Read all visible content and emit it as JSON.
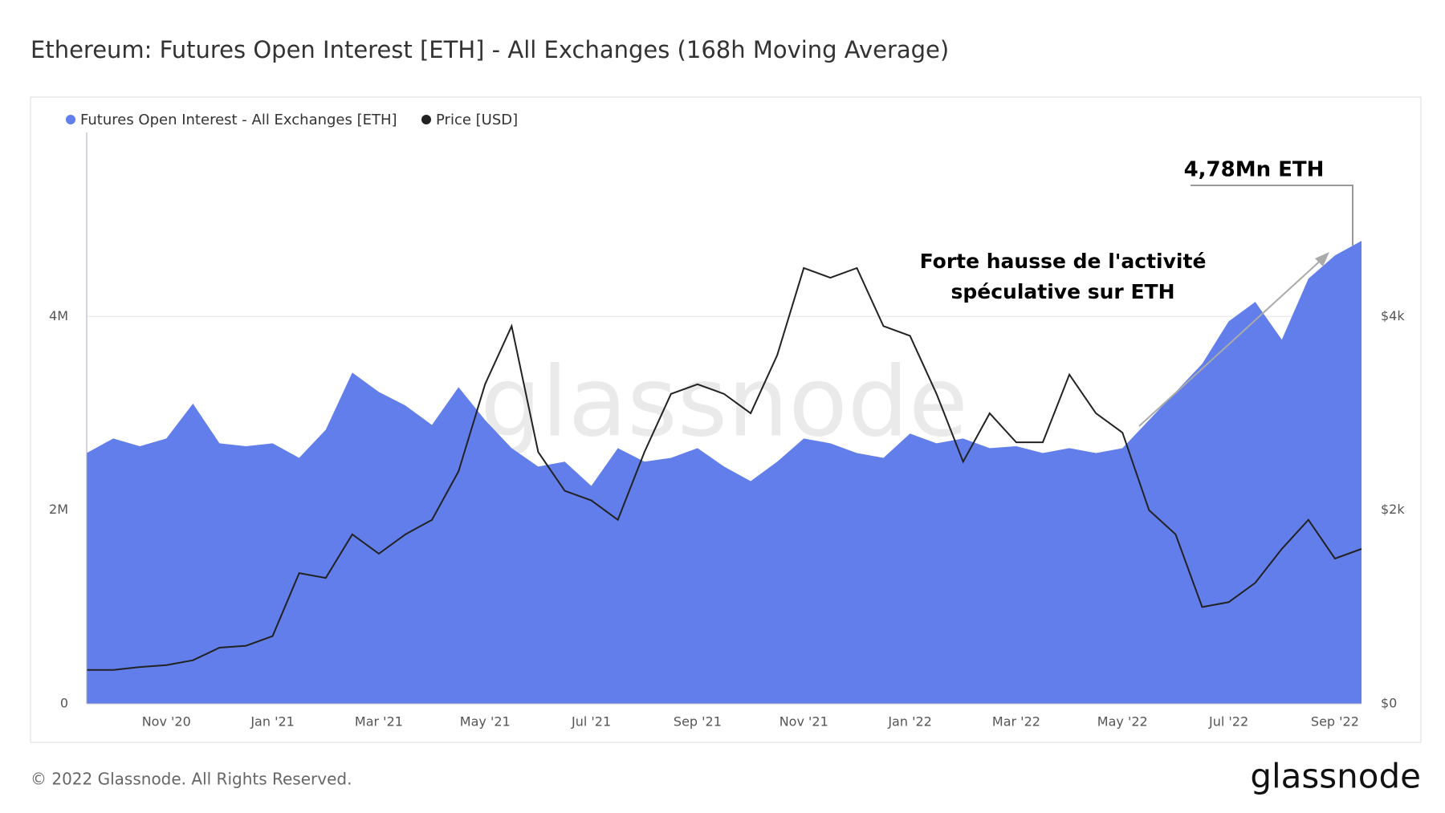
{
  "chart_data": {
    "type": "area-line",
    "title": "Ethereum: Futures Open Interest [ETH] - All Exchanges (168h Moving Average)",
    "categories": [
      null,
      null,
      null,
      "Nov '20",
      null,
      null,
      null,
      "Jan '21",
      null,
      null,
      null,
      "Mar '21",
      null,
      null,
      null,
      "May '21",
      null,
      null,
      null,
      "Jul '21",
      null,
      null,
      null,
      "Sep '21",
      null,
      null,
      null,
      "Nov '21",
      null,
      null,
      null,
      "Jan '22",
      null,
      null,
      null,
      "Mar '22",
      null,
      null,
      null,
      "May '22",
      null,
      null,
      null,
      "Jul '22",
      null,
      null,
      null,
      "Sep '22",
      null
    ],
    "series": [
      {
        "name": "Futures Open Interest - All Exchanges [ETH]",
        "color": "#627eea",
        "axis": "y",
        "values": [
          2590000,
          2740000,
          2660000,
          2740000,
          3100000,
          2690000,
          2660000,
          2690000,
          2540000,
          2830000,
          3420000,
          3220000,
          3080000,
          2880000,
          3270000,
          2930000,
          2640000,
          2450000,
          2500000,
          2250000,
          2640000,
          2500000,
          2540000,
          2640000,
          2450000,
          2300000,
          2500000,
          2740000,
          2690000,
          2590000,
          2540000,
          2790000,
          2690000,
          2740000,
          2640000,
          2660000,
          2590000,
          2640000,
          2590000,
          2640000,
          2930000,
          3220000,
          3510000,
          3950000,
          4150000,
          3760000,
          4390000,
          4630000,
          4780000
        ]
      },
      {
        "name": "Price [USD]",
        "color": "#222222",
        "axis": "y2",
        "values": [
          350,
          350,
          380,
          400,
          450,
          580,
          600,
          700,
          1350,
          1300,
          1750,
          1550,
          1750,
          1900,
          2400,
          3300,
          3900,
          2600,
          2200,
          2100,
          1900,
          2600,
          3200,
          3300,
          3200,
          3000,
          3600,
          4500,
          4400,
          4500,
          3900,
          3800,
          3200,
          2500,
          3000,
          2700,
          2700,
          3400,
          3000,
          2800,
          2000,
          1750,
          1000,
          1050,
          1250,
          1600,
          1900,
          1500,
          1600
        ]
      }
    ],
    "ylim": [
      0,
      5900000
    ],
    "yticks": [
      0,
      {
        "value": 2000000,
        "label": "2M"
      },
      {
        "value": 4000000,
        "label": "4M"
      }
    ],
    "y2lim": [
      0,
      5900
    ],
    "y2ticks": [
      {
        "value": 0,
        "label": "$0"
      },
      {
        "value": 2000,
        "label": "$2k"
      },
      {
        "value": 4000,
        "label": "$4k"
      }
    ],
    "grid": true,
    "legend": "top-left",
    "annotations": [
      "4,78Mn ETH",
      "Forte hausse de l'activité",
      "spéculative sur ETH"
    ],
    "watermark": "glassnode",
    "footer": "© 2022 Glassnode. All Rights Reserved.",
    "logo": "glassnode"
  }
}
